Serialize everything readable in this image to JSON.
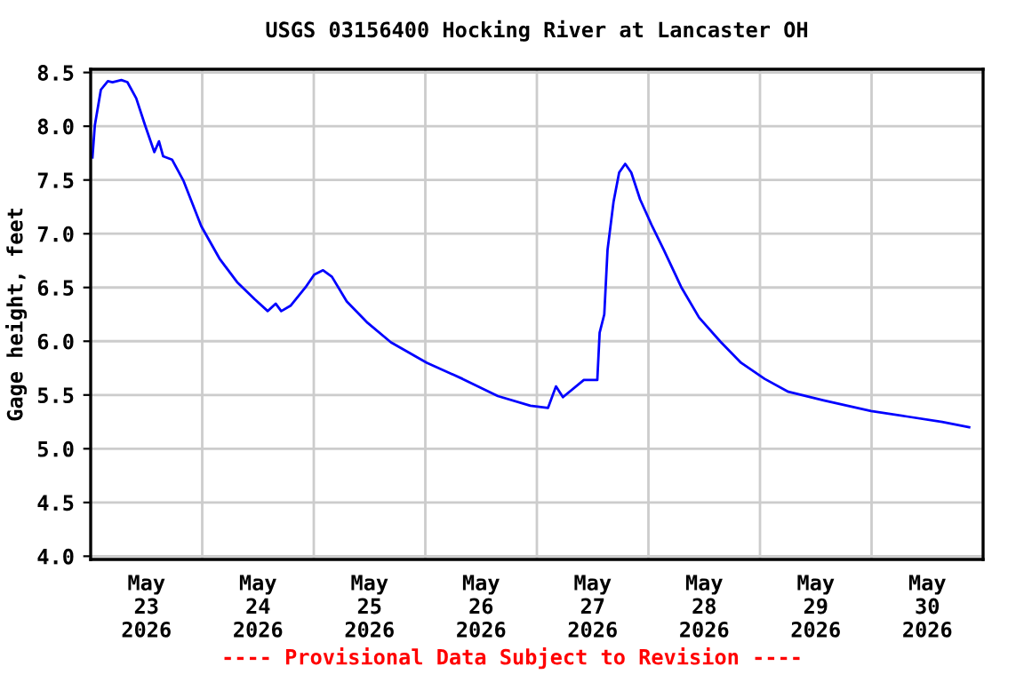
{
  "chart_data": {
    "type": "line",
    "title": "USGS 03156400 Hocking River at Lancaster OH",
    "ylabel": "Gage height, feet",
    "annotations": [
      "---- Provisional Data Subject to Revision ----"
    ],
    "x": [
      "2026-05-23T00:23",
      "2026-05-23T00:54",
      "2026-05-23T02:12",
      "2026-05-23T03:42",
      "2026-05-23T04:42",
      "2026-05-23T06:36",
      "2026-05-23T07:54",
      "2026-05-23T09:48",
      "2026-05-23T11:42",
      "2026-05-23T13:42",
      "2026-05-23T14:42",
      "2026-05-23T15:36",
      "2026-05-23T17:30",
      "2026-05-23T20:00",
      "2026-05-23T23:48",
      "2026-05-24T03:42",
      "2026-05-24T07:30",
      "2026-05-24T11:18",
      "2026-05-24T14:06",
      "2026-05-24T15:48",
      "2026-05-24T17:00",
      "2026-05-24T19:00",
      "2026-05-24T22:12",
      "2026-05-25T00:06",
      "2026-05-25T02:00",
      "2026-05-25T03:54",
      "2026-05-25T07:06",
      "2026-05-25T11:36",
      "2026-05-25T16:36",
      "2026-05-26T00:18",
      "2026-05-26T08:00",
      "2026-05-26T15:36",
      "2026-05-26T22:36",
      "2026-05-27T02:24",
      "2026-05-27T04:06",
      "2026-05-27T05:36",
      "2026-05-27T10:06",
      "2026-05-27T13:00",
      "2026-05-27T13:30",
      "2026-05-27T14:30",
      "2026-05-27T15:12",
      "2026-05-27T16:30",
      "2026-05-27T17:42",
      "2026-05-27T19:00",
      "2026-05-27T20:18",
      "2026-05-27T22:12",
      "2026-05-28T00:48",
      "2026-05-28T03:18",
      "2026-05-28T07:06",
      "2026-05-28T10:54",
      "2026-05-28T15:24",
      "2026-05-28T19:54",
      "2026-05-29T01:00",
      "2026-05-29T06:06",
      "2026-05-29T13:42",
      "2026-05-29T23:54",
      "2026-05-30T07:36",
      "2026-05-30T15:12",
      "2026-05-30T21:00"
    ],
    "series": [
      {
        "color": "#0000ff",
        "values": [
          7.71,
          8.01,
          8.34,
          8.42,
          8.41,
          8.43,
          8.41,
          8.26,
          8.01,
          7.76,
          7.86,
          7.72,
          7.69,
          7.49,
          7.07,
          6.77,
          6.55,
          6.39,
          6.28,
          6.35,
          6.28,
          6.33,
          6.5,
          6.62,
          6.66,
          6.6,
          6.37,
          6.17,
          5.99,
          5.8,
          5.65,
          5.49,
          5.4,
          5.38,
          5.58,
          5.48,
          5.64,
          5.64,
          6.08,
          6.25,
          6.85,
          7.3,
          7.57,
          7.65,
          7.57,
          7.32,
          7.07,
          6.85,
          6.5,
          6.22,
          6.0,
          5.8,
          5.65,
          5.53,
          5.45,
          5.35,
          5.3,
          5.25,
          5.2
        ]
      }
    ],
    "xlim": [
      "2026-05-23T00:00",
      "2026-05-31T00:00"
    ],
    "xticks": [
      {
        "value": "2026-05-23T00:00",
        "label": null
      },
      {
        "value": "2026-05-24T00:00",
        "label": null
      },
      {
        "value": "2026-05-25T00:00",
        "label": null
      },
      {
        "value": "2026-05-26T00:00",
        "label": null
      },
      {
        "value": "2026-05-27T00:00",
        "label": null
      },
      {
        "value": "2026-05-28T00:00",
        "label": null
      },
      {
        "value": "2026-05-29T00:00",
        "label": null
      },
      {
        "value": "2026-05-30T00:00",
        "label": null
      },
      {
        "value": "2026-05-31T00:00",
        "label": null
      },
      {
        "value": "2026-05-23T12:00",
        "label": "May\n23\n2026"
      },
      {
        "value": "2026-05-24T12:00",
        "label": "May\n24\n2026"
      },
      {
        "value": "2026-05-25T12:00",
        "label": "May\n25\n2026"
      },
      {
        "value": "2026-05-26T12:00",
        "label": "May\n26\n2026"
      },
      {
        "value": "2026-05-27T12:00",
        "label": "May\n27\n2026"
      },
      {
        "value": "2026-05-28T12:00",
        "label": "May\n28\n2026"
      },
      {
        "value": "2026-05-29T12:00",
        "label": "May\n29\n2026"
      },
      {
        "value": "2026-05-30T12:00",
        "label": "May\n30\n2026"
      }
    ],
    "ylim": [
      3.97,
      8.53
    ],
    "yticks": [
      {
        "value": 4.0,
        "label": "4.0"
      },
      {
        "value": 4.5,
        "label": "4.5"
      },
      {
        "value": 5.0,
        "label": "5.0"
      },
      {
        "value": 5.5,
        "label": "5.5"
      },
      {
        "value": 6.0,
        "label": "6.0"
      },
      {
        "value": 6.5,
        "label": "6.5"
      },
      {
        "value": 7.0,
        "label": "7.0"
      },
      {
        "value": 7.5,
        "label": "7.5"
      },
      {
        "value": 8.0,
        "label": "8.0"
      },
      {
        "value": 8.5,
        "label": "8.5"
      }
    ],
    "grid": true,
    "line_style": "solid",
    "marker": "none",
    "legend": false
  }
}
